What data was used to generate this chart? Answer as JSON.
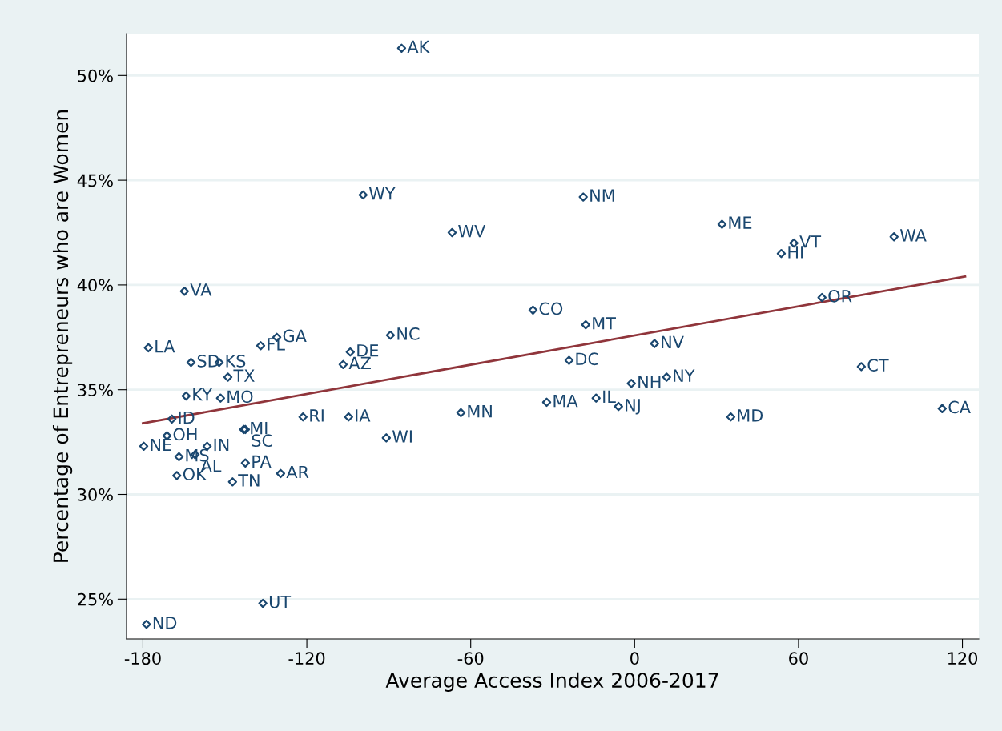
{
  "chart_data": {
    "type": "scatter",
    "xlabel": "Average Access Index 2006-2017",
    "ylabel": "Percentage of Entrepreneurs who are Women",
    "xlim": [
      -186,
      126
    ],
    "ylim": [
      23.1,
      52
    ],
    "xticks": [
      -180,
      -120,
      -60,
      0,
      60,
      120
    ],
    "yticks": [
      {
        "value": 25,
        "label": "25%"
      },
      {
        "value": 30,
        "label": "30%"
      },
      {
        "value": 35,
        "label": "35%"
      },
      {
        "value": 40,
        "label": "40%"
      },
      {
        "value": 45,
        "label": "45%"
      },
      {
        "value": 50,
        "label": "50%"
      }
    ],
    "grid": "y",
    "marker": "diamond",
    "series": [
      {
        "name": "AK",
        "color": "#1a476f",
        "x": [
          -85.3
        ],
        "values": [
          51.3
        ]
      },
      {
        "name": "WY",
        "color": "#1a476f",
        "x": [
          -99.4
        ],
        "values": [
          44.3
        ]
      },
      {
        "name": "NM",
        "color": "#1a476f",
        "x": [
          -18.8
        ],
        "values": [
          44.2
        ]
      },
      {
        "name": "WV",
        "color": "#1a476f",
        "x": [
          -66.8
        ],
        "values": [
          42.5
        ]
      },
      {
        "name": "ME",
        "color": "#1a476f",
        "x": [
          32.0
        ],
        "values": [
          42.9
        ]
      },
      {
        "name": "VT",
        "color": "#1a476f",
        "x": [
          58.3
        ],
        "values": [
          42.0
        ]
      },
      {
        "name": "WA",
        "color": "#1a476f",
        "x": [
          95.0
        ],
        "values": [
          42.3
        ]
      },
      {
        "name": "HI",
        "color": "#1a476f",
        "x": [
          53.7
        ],
        "values": [
          41.5
        ]
      },
      {
        "name": "VA",
        "color": "#1a476f",
        "x": [
          -164.8
        ],
        "values": [
          39.7
        ]
      },
      {
        "name": "OR",
        "color": "#1a476f",
        "x": [
          68.6
        ],
        "values": [
          39.4
        ]
      },
      {
        "name": "CO",
        "color": "#1a476f",
        "x": [
          -37.2
        ],
        "values": [
          38.8
        ]
      },
      {
        "name": "MT",
        "color": "#1a476f",
        "x": [
          -17.9
        ],
        "values": [
          38.1
        ]
      },
      {
        "name": "NC",
        "color": "#1a476f",
        "x": [
          -89.4
        ],
        "values": [
          37.6
        ]
      },
      {
        "name": "GA",
        "color": "#1a476f",
        "x": [
          -131.0
        ],
        "values": [
          37.5
        ]
      },
      {
        "name": "LA",
        "color": "#1a476f",
        "x": [
          -178.0
        ],
        "values": [
          37.0
        ]
      },
      {
        "name": "FL",
        "color": "#1a476f",
        "x": [
          -136.9
        ],
        "values": [
          37.1
        ]
      },
      {
        "name": "NV",
        "color": "#1a476f",
        "x": [
          7.3
        ],
        "values": [
          37.2
        ]
      },
      {
        "name": "DE",
        "color": "#1a476f",
        "x": [
          -104.1
        ],
        "values": [
          36.8
        ]
      },
      {
        "name": "SD",
        "color": "#1a476f",
        "x": [
          -162.4
        ],
        "values": [
          36.3
        ]
      },
      {
        "name": "KS",
        "color": "#1a476f",
        "x": [
          -152.1
        ],
        "values": [
          36.3
        ]
      },
      {
        "name": "DC",
        "color": "#1a476f",
        "x": [
          -24.0
        ],
        "values": [
          36.4
        ]
      },
      {
        "name": "AZ",
        "color": "#1a476f",
        "x": [
          -106.7
        ],
        "values": [
          36.2
        ]
      },
      {
        "name": "CT",
        "color": "#1a476f",
        "x": [
          83.0
        ],
        "values": [
          36.1
        ]
      },
      {
        "name": "TX",
        "color": "#1a476f",
        "x": [
          -148.9
        ],
        "values": [
          35.6
        ]
      },
      {
        "name": "NY",
        "color": "#1a476f",
        "x": [
          11.7
        ],
        "values": [
          35.6
        ]
      },
      {
        "name": "NH",
        "color": "#1a476f",
        "x": [
          -1.2
        ],
        "values": [
          35.3
        ]
      },
      {
        "name": "KY",
        "color": "#1a476f",
        "x": [
          -164.2
        ],
        "values": [
          34.7
        ]
      },
      {
        "name": "MO",
        "color": "#1a476f",
        "x": [
          -151.6
        ],
        "values": [
          34.6
        ]
      },
      {
        "name": "IL",
        "color": "#1a476f",
        "x": [
          -14.1
        ],
        "values": [
          34.6
        ]
      },
      {
        "name": "MA",
        "color": "#1a476f",
        "x": [
          -32.2
        ],
        "values": [
          34.4
        ]
      },
      {
        "name": "NJ",
        "color": "#1a476f",
        "x": [
          -5.9
        ],
        "values": [
          34.2
        ]
      },
      {
        "name": "CA",
        "color": "#1a476f",
        "x": [
          112.6
        ],
        "values": [
          34.1
        ]
      },
      {
        "name": "MN",
        "color": "#1a476f",
        "x": [
          -63.6
        ],
        "values": [
          33.9
        ]
      },
      {
        "name": "RI",
        "color": "#1a476f",
        "x": [
          -121.4
        ],
        "values": [
          33.7
        ]
      },
      {
        "name": "IA",
        "color": "#1a476f",
        "x": [
          -104.7
        ],
        "values": [
          33.7
        ]
      },
      {
        "name": "MD",
        "color": "#1a476f",
        "x": [
          35.2
        ],
        "values": [
          33.7
        ]
      },
      {
        "name": "ID",
        "color": "#1a476f",
        "x": [
          -169.4
        ],
        "values": [
          33.6
        ]
      },
      {
        "name": "MI",
        "color": "#1a476f",
        "x": [
          -143.1
        ],
        "values": [
          33.1
        ]
      },
      {
        "name": "SC",
        "color": "#1a476f",
        "x": [
          -142.5
        ],
        "values": [
          33.1
        ]
      },
      {
        "name": "OH",
        "color": "#1a476f",
        "x": [
          -171.2
        ],
        "values": [
          32.8
        ]
      },
      {
        "name": "WI",
        "color": "#1a476f",
        "x": [
          -90.9
        ],
        "values": [
          32.7
        ]
      },
      {
        "name": "NE",
        "color": "#1a476f",
        "x": [
          -179.7
        ],
        "values": [
          32.3
        ]
      },
      {
        "name": "IN",
        "color": "#1a476f",
        "x": [
          -156.5
        ],
        "values": [
          32.3
        ]
      },
      {
        "name": "AL",
        "color": "#1a476f",
        "x": [
          -160.9
        ],
        "values": [
          31.9
        ]
      },
      {
        "name": "MS",
        "color": "#1a476f",
        "x": [
          -166.8
        ],
        "values": [
          31.8
        ]
      },
      {
        "name": "OK",
        "color": "#1a476f",
        "x": [
          -167.6
        ],
        "values": [
          30.9
        ]
      },
      {
        "name": "PA",
        "color": "#1a476f",
        "x": [
          -142.5
        ],
        "values": [
          31.5
        ]
      },
      {
        "name": "TN",
        "color": "#1a476f",
        "x": [
          -147.2
        ],
        "values": [
          30.6
        ]
      },
      {
        "name": "AR",
        "color": "#1a476f",
        "x": [
          -129.6
        ],
        "values": [
          31.0
        ]
      },
      {
        "name": "UT",
        "color": "#1a476f",
        "x": [
          -136.1
        ],
        "values": [
          24.8
        ]
      },
      {
        "name": "ND",
        "color": "#1a476f",
        "x": [
          -178.7
        ],
        "values": [
          23.8
        ]
      },
      {
        "type": "line",
        "marker": "none",
        "color": "#90353b",
        "x": [
          -180,
          121
        ],
        "values": [
          33.4,
          40.4
        ]
      }
    ]
  }
}
